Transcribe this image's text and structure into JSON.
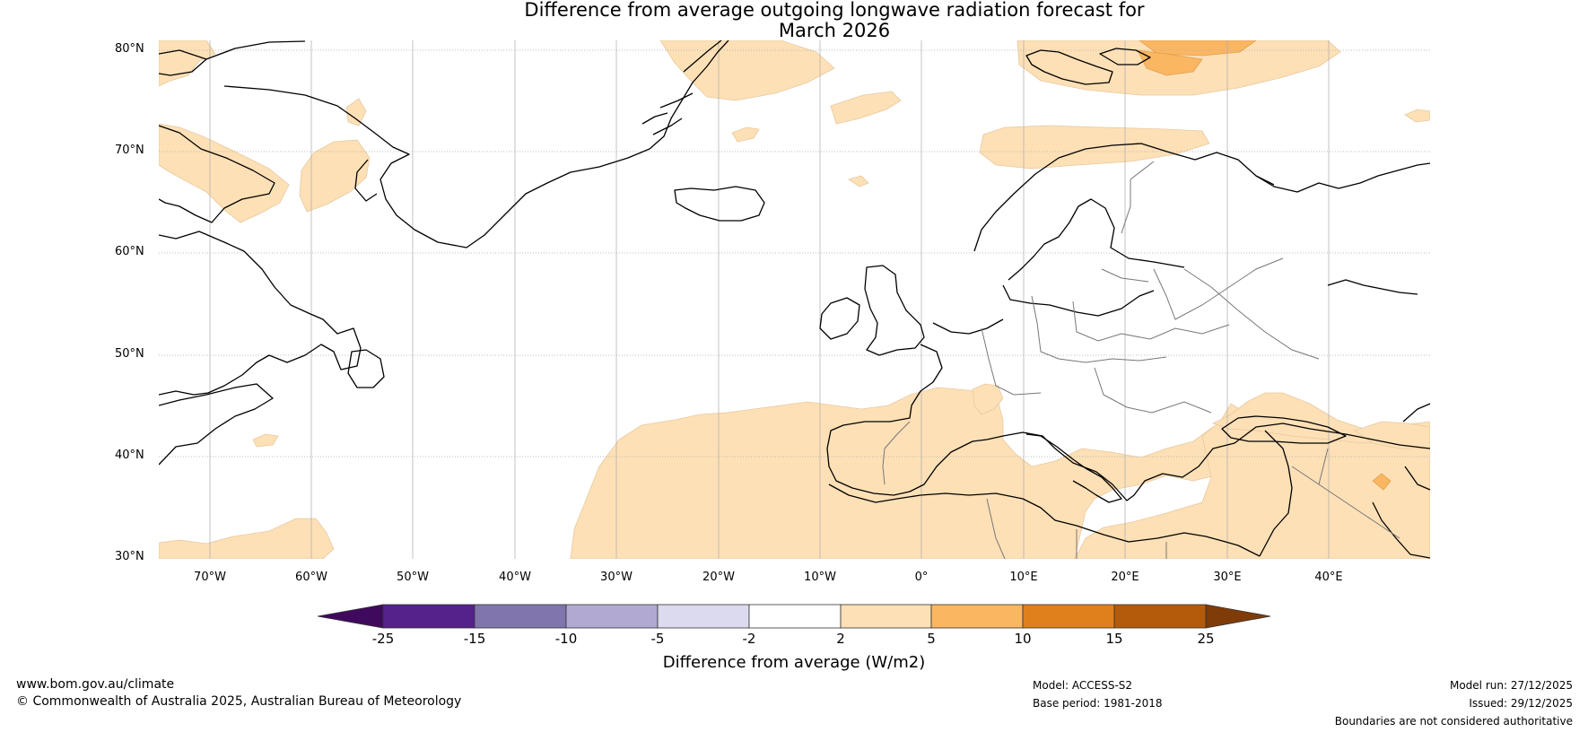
{
  "title": {
    "line1": "Difference from average outgoing longwave radiation forecast for",
    "line2": "March 2026"
  },
  "map": {
    "lat_labels": [
      "80°N",
      "70°N",
      "60°N",
      "50°N",
      "40°N",
      "30°N"
    ],
    "lon_labels": [
      "70°W",
      "60°W",
      "50°W",
      "40°W",
      "30°W",
      "20°W",
      "10°W",
      "0°",
      "10°E",
      "20°E",
      "30°E",
      "40°E"
    ],
    "extent": {
      "lon_min": -75,
      "lon_max": 50,
      "lat_min": 30,
      "lat_max": 81
    }
  },
  "colorbar": {
    "ticks": [
      "-25",
      "-15",
      "-10",
      "-5",
      "-2",
      "2",
      "5",
      "10",
      "15",
      "25"
    ],
    "colors": [
      "#3f0a5e",
      "#55218a",
      "#8075ad",
      "#b1a9d2",
      "#dcdaee",
      "#ffffff",
      "#fde0b6",
      "#fbb662",
      "#e0801c",
      "#b45b0b",
      "#7f3b08"
    ],
    "title": "Difference from average (W/m2)"
  },
  "footer": {
    "website": "www.bom.gov.au/climate",
    "copyright": "© Commonwealth of Australia 2025, Australian Bureau of Meteorology",
    "model": "Model: ACCESS-S2",
    "base_period": "Base period: 1981-2018",
    "model_run": "Model run: 27/12/2025",
    "issued": "Issued: 29/12/2025",
    "disclaimer": "Boundaries are not considered authoritative"
  }
}
